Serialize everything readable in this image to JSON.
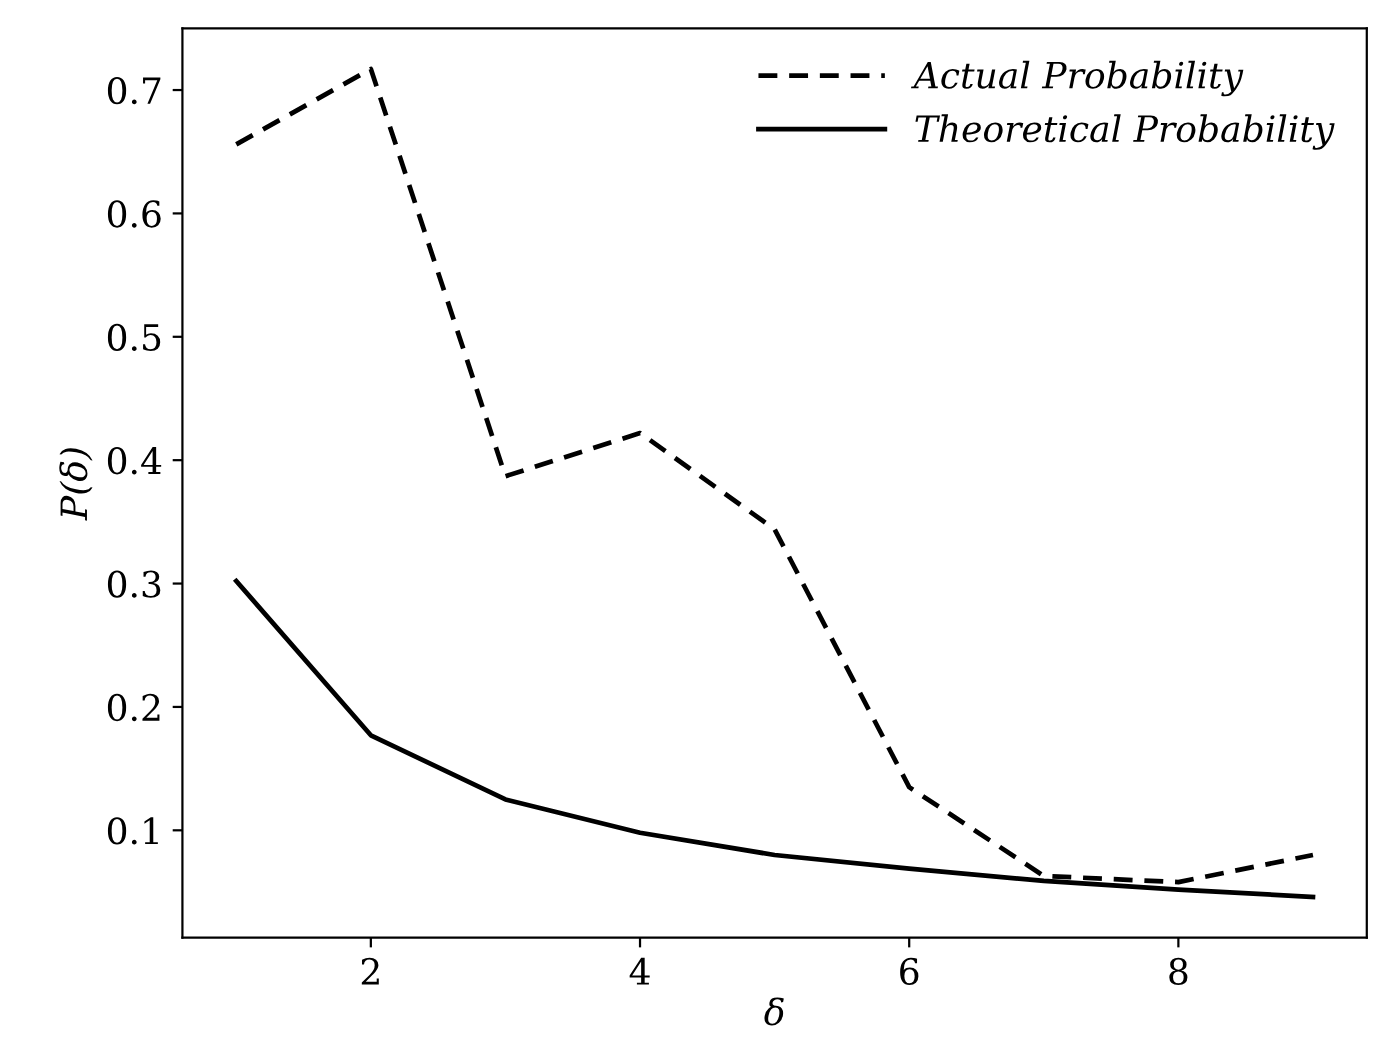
{
  "chart_data": {
    "type": "line",
    "xlabel": "δ",
    "ylabel": "P(δ)",
    "x": [
      1,
      2,
      3,
      4,
      5,
      6,
      7,
      8,
      9
    ],
    "series": [
      {
        "name": "Actual Probability",
        "color": "#000000",
        "line_style": "dashed",
        "values": [
          0.656,
          0.717,
          0.387,
          0.422,
          0.344,
          0.135,
          0.063,
          0.058,
          0.08
        ]
      },
      {
        "name": "Theoretical Probability",
        "color": "#000000",
        "line_style": "solid",
        "values": [
          0.302,
          0.177,
          0.125,
          0.098,
          0.08,
          0.069,
          0.059,
          0.052,
          0.046
        ]
      }
    ],
    "xlim": [
      0.6,
      9.4
    ],
    "ylim": [
      0.013,
      0.75
    ],
    "xticks": [
      2,
      4,
      6,
      8
    ],
    "yticks": [
      0.1,
      0.2,
      0.3,
      0.4,
      0.5,
      0.6,
      0.7
    ],
    "grid": false,
    "legend": "top right",
    "marker": "none"
  }
}
